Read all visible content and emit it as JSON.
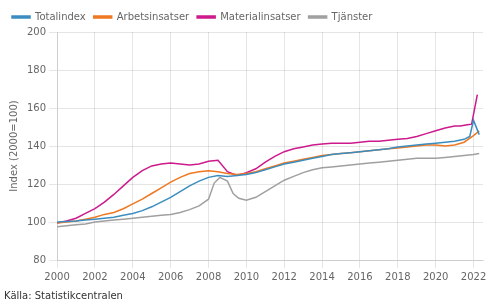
{
  "chart_data": {
    "type": "line",
    "y_label": "Index (2000=100)",
    "annotations": [
      "Källa: Statistikcentralen"
    ],
    "xlim": [
      2000.0,
      2022.5
    ],
    "xticks": [
      2000,
      2002,
      2004,
      2006,
      2008,
      2010,
      2012,
      2014,
      2016,
      2018,
      2020,
      2022
    ],
    "ylim": [
      80,
      200
    ],
    "yticks": [
      80,
      100,
      120,
      140,
      160,
      180,
      200
    ],
    "grid": true,
    "legend": "upper left",
    "series": [
      {
        "name": "Totalindex",
        "color": "#3b8dbf",
        "x": [
          2000,
          2000.5,
          2001,
          2001.5,
          2002,
          2002.5,
          2003,
          2003.5,
          2004,
          2004.5,
          2005,
          2005.5,
          2006,
          2006.5,
          2007,
          2007.5,
          2008,
          2008.5,
          2009,
          2009.5,
          2010,
          2010.5,
          2011,
          2011.5,
          2012,
          2012.5,
          2013,
          2013.5,
          2014,
          2014.5,
          2015,
          2015.5,
          2016,
          2016.5,
          2017,
          2017.5,
          2018,
          2018.5,
          2019,
          2019.5,
          2020,
          2020.5,
          2021,
          2021.5,
          2021.8,
          2022.0,
          2022.3
        ],
        "values": [
          100,
          100.2,
          100.5,
          101.0,
          101.5,
          102.0,
          102.5,
          103.5,
          104.5,
          106.0,
          108.0,
          110.5,
          113.0,
          116.0,
          119.0,
          121.5,
          123.5,
          124.5,
          124.0,
          124.5,
          125.0,
          126.0,
          127.5,
          129.0,
          130.5,
          131.5,
          132.5,
          133.5,
          134.5,
          135.5,
          136.0,
          136.5,
          137.0,
          137.5,
          138.0,
          138.5,
          139.5,
          140.0,
          140.5,
          141.0,
          141.5,
          142.0,
          142.5,
          143.5,
          145.0,
          153.5,
          146.0
        ]
      },
      {
        "name": "Arbetsinsatser",
        "color": "#f07820",
        "x": [
          2000,
          2000.5,
          2001,
          2001.5,
          2002,
          2002.5,
          2003,
          2003.5,
          2004,
          2004.5,
          2005,
          2005.5,
          2006,
          2006.5,
          2007,
          2007.5,
          2008,
          2008.5,
          2009,
          2009.5,
          2010,
          2010.5,
          2011,
          2011.5,
          2012,
          2012.5,
          2013,
          2013.5,
          2014,
          2014.5,
          2015,
          2015.5,
          2016,
          2016.5,
          2017,
          2017.5,
          2018,
          2018.5,
          2019,
          2019.5,
          2020,
          2020.5,
          2021,
          2021.5,
          2022.0,
          2022.3
        ],
        "values": [
          99.5,
          100.0,
          100.5,
          101.5,
          102.5,
          104.0,
          105.0,
          107.0,
          109.5,
          112.0,
          115.0,
          118.0,
          121.0,
          123.5,
          125.5,
          126.5,
          127.0,
          126.5,
          125.5,
          125.0,
          125.5,
          126.5,
          128.0,
          129.5,
          131.0,
          132.0,
          133.0,
          134.0,
          135.0,
          135.5,
          136.0,
          136.5,
          137.0,
          137.5,
          138.0,
          138.5,
          139.0,
          139.5,
          140.0,
          140.5,
          140.5,
          140.0,
          140.5,
          142.0,
          145.5,
          148.0
        ]
      },
      {
        "name": "Materialinsatser",
        "color": "#cc1a8c",
        "x": [
          2000,
          2000.5,
          2001,
          2001.5,
          2002,
          2002.5,
          2003,
          2003.5,
          2004,
          2004.5,
          2005,
          2005.5,
          2006,
          2006.5,
          2007,
          2007.5,
          2008,
          2008.5,
          2009,
          2009.5,
          2010,
          2010.5,
          2011,
          2011.5,
          2012,
          2012.5,
          2013,
          2013.5,
          2014,
          2014.5,
          2015,
          2015.5,
          2016,
          2016.5,
          2017,
          2017.5,
          2018,
          2018.5,
          2019,
          2019.5,
          2020,
          2020.5,
          2021,
          2021.3,
          2021.6,
          2021.9,
          2022.2
        ],
        "values": [
          99.5,
          100.5,
          102.0,
          104.5,
          107.0,
          110.5,
          114.5,
          119.0,
          123.5,
          127.0,
          129.5,
          130.5,
          131.0,
          130.5,
          130.0,
          130.5,
          132.0,
          132.5,
          126.5,
          124.5,
          126.0,
          128.0,
          131.5,
          134.5,
          137.0,
          138.5,
          139.5,
          140.5,
          141.0,
          141.5,
          141.5,
          141.5,
          142.0,
          142.5,
          142.5,
          143.0,
          143.5,
          144.0,
          145.0,
          146.5,
          148.0,
          149.5,
          150.5,
          150.5,
          151.0,
          151.5,
          167.0
        ]
      },
      {
        "name": "Tjänster",
        "color": "#a0a0a0",
        "x": [
          2000,
          2000.5,
          2001,
          2001.5,
          2002,
          2002.5,
          2003,
          2003.5,
          2004,
          2004.5,
          2005,
          2005.5,
          2006,
          2006.5,
          2007,
          2007.5,
          2008,
          2008.3,
          2008.6,
          2009,
          2009.3,
          2009.6,
          2010,
          2010.5,
          2011,
          2011.5,
          2012,
          2012.5,
          2013,
          2013.5,
          2014,
          2014.5,
          2015,
          2015.5,
          2016,
          2016.5,
          2017,
          2017.5,
          2018,
          2018.5,
          2019,
          2019.5,
          2020,
          2020.5,
          2021,
          2021.5,
          2022.0,
          2022.3
        ],
        "values": [
          97.5,
          98.0,
          98.5,
          99.0,
          100.0,
          100.5,
          101.0,
          101.5,
          102.0,
          102.5,
          103.0,
          103.5,
          104.0,
          105.0,
          106.5,
          108.5,
          112.0,
          120.5,
          123.5,
          121.5,
          115.0,
          112.5,
          111.5,
          113.0,
          116.0,
          119.0,
          122.0,
          124.0,
          126.0,
          127.5,
          128.5,
          129.0,
          129.5,
          130.0,
          130.5,
          131.0,
          131.5,
          132.0,
          132.5,
          133.0,
          133.5,
          133.5,
          133.5,
          134.0,
          134.5,
          135.0,
          135.5,
          136.0
        ]
      }
    ]
  }
}
